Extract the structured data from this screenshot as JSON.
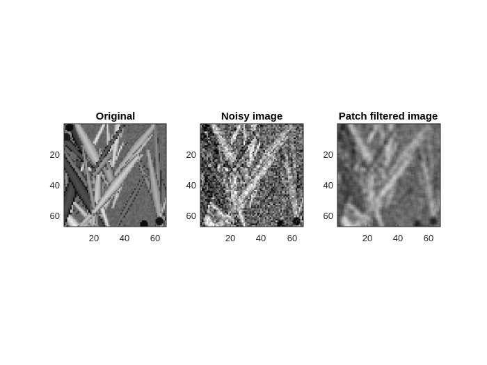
{
  "figure": {
    "background": "#ffffff",
    "panels": [
      {
        "title": "Original",
        "kind": "original",
        "seed": 11
      },
      {
        "title": "Noisy image",
        "kind": "noisy",
        "seed": 11
      },
      {
        "title": "Patch filtered image",
        "kind": "filtered",
        "seed": 11
      }
    ],
    "image_size": [
      67,
      67
    ],
    "x_ticks": [
      "20",
      "40",
      "60"
    ],
    "x_tick_values": [
      20,
      40,
      60
    ],
    "y_ticks": [
      "20",
      "40",
      "60"
    ],
    "y_tick_values": [
      20,
      40,
      60
    ],
    "colormap": "gray",
    "axis_color": "#262626"
  }
}
